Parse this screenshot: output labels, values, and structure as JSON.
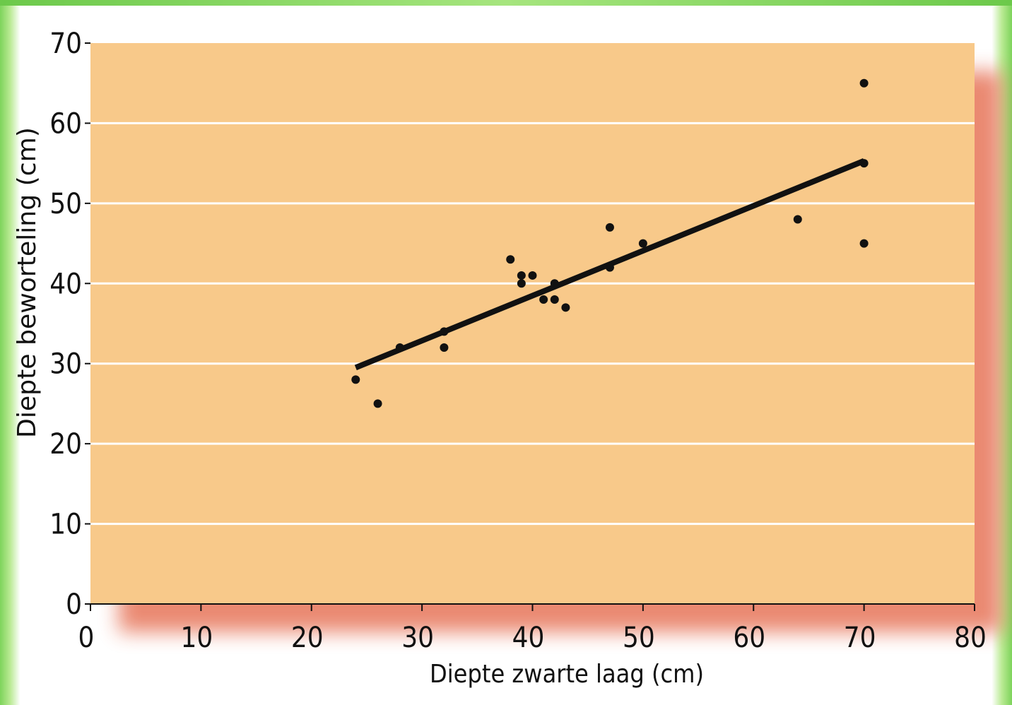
{
  "chart_data": {
    "type": "scatter",
    "title": "",
    "xlabel": "Diepte zwarte laag (cm)",
    "ylabel": "Diepte beworteling (cm)",
    "xlim": [
      0,
      80
    ],
    "ylim": [
      0,
      70
    ],
    "x_ticks": [
      0,
      10,
      20,
      30,
      40,
      50,
      60,
      70,
      80
    ],
    "y_ticks": [
      0,
      10,
      20,
      30,
      40,
      50,
      60,
      70
    ],
    "grid": "horizontal",
    "colors": {
      "plot_background": "#f8c98a",
      "shadow": "#e9836a",
      "points": "#111111",
      "trendline": "#111111",
      "gridlines": "#ffffff"
    },
    "points": [
      {
        "x": 24,
        "y": 28
      },
      {
        "x": 26,
        "y": 25
      },
      {
        "x": 28,
        "y": 32
      },
      {
        "x": 32,
        "y": 32
      },
      {
        "x": 32,
        "y": 34
      },
      {
        "x": 38,
        "y": 43
      },
      {
        "x": 39,
        "y": 41
      },
      {
        "x": 39,
        "y": 40
      },
      {
        "x": 40,
        "y": 41
      },
      {
        "x": 41,
        "y": 38
      },
      {
        "x": 42,
        "y": 40
      },
      {
        "x": 42,
        "y": 38
      },
      {
        "x": 43,
        "y": 37
      },
      {
        "x": 47,
        "y": 47
      },
      {
        "x": 47,
        "y": 42
      },
      {
        "x": 50,
        "y": 45
      },
      {
        "x": 64,
        "y": 48
      },
      {
        "x": 70,
        "y": 65
      },
      {
        "x": 70,
        "y": 55
      },
      {
        "x": 70,
        "y": 45
      }
    ],
    "trendline": {
      "x1": 24,
      "y1": 29.5,
      "x2": 70,
      "y2": 55.3
    }
  }
}
